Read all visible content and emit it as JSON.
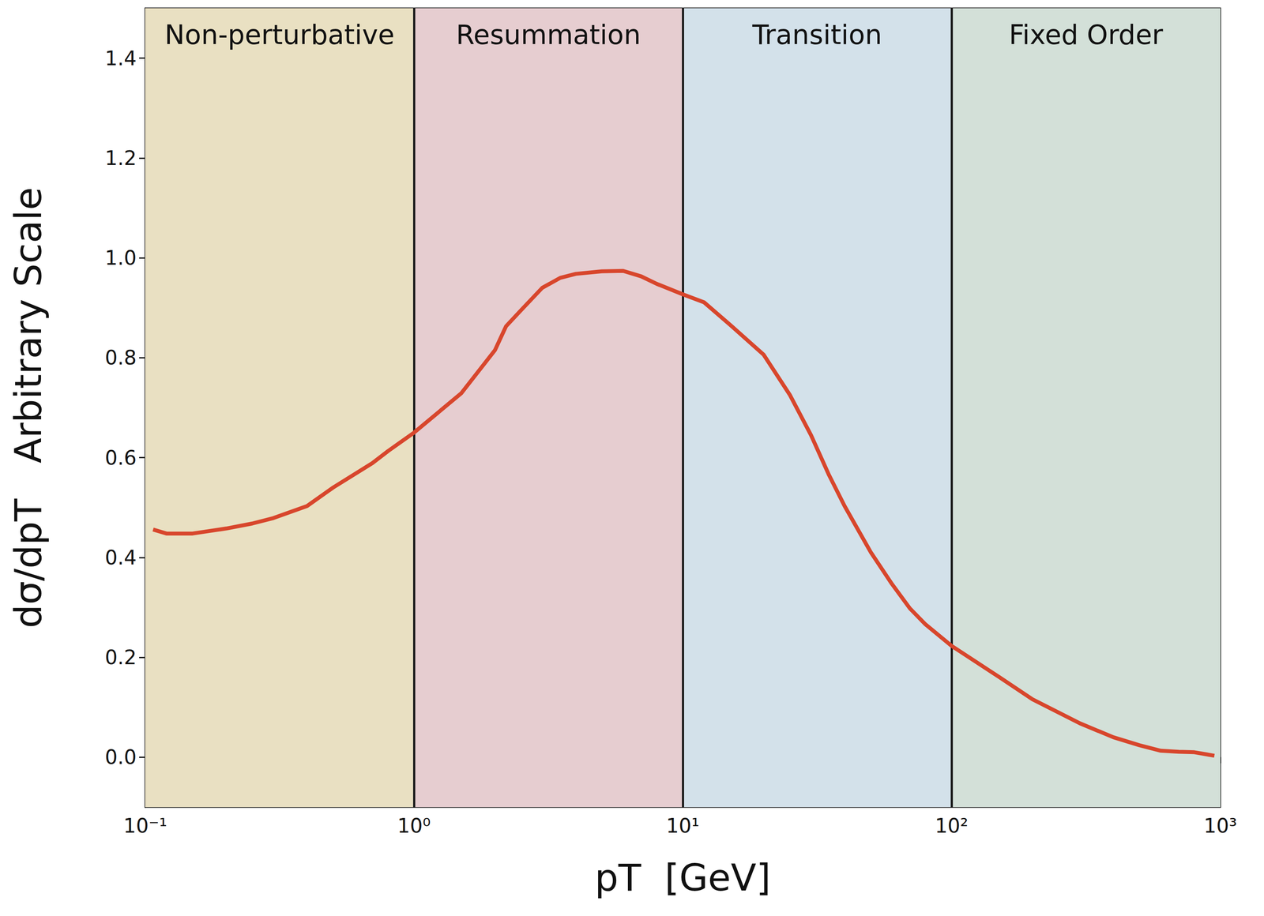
{
  "chart_data": {
    "type": "line",
    "xlabel": "pT  [GeV]",
    "ylabel": "dσ/dpT   Arbitrary Scale",
    "log": "x",
    "grid": false,
    "color": "#d8462c",
    "xlim": [
      0.1,
      1000
    ],
    "ylim": [
      -0.1,
      1.5
    ],
    "xticks": [
      {
        "value": 0.1,
        "label": "10⁻¹"
      },
      {
        "value": 1,
        "label": "10⁰"
      },
      {
        "value": 10,
        "label": "10¹"
      },
      {
        "value": 100,
        "label": "10²"
      },
      {
        "value": 1000,
        "label": "10³"
      }
    ],
    "yticks": [
      {
        "value": 0,
        "label": "0.0"
      },
      0.2,
      0.4,
      0.6,
      0.8,
      {
        "value": 1,
        "label": "1.0"
      },
      1.2,
      1.4
    ],
    "regions": [
      {
        "label": "Non-perturbative",
        "start": 0.1,
        "end": 1,
        "color": "#e9e0c2"
      },
      {
        "label": "Resummation",
        "start": 1,
        "end": 10,
        "color": "#e6cdd0"
      },
      {
        "label": "Transition",
        "start": 10,
        "end": 100,
        "color": "#d3e1ea"
      },
      {
        "label": "Fixed Order",
        "start": 100,
        "end": 1000,
        "color": "#d3e0d8"
      }
    ],
    "x": [
      0.107,
      0.12,
      0.15,
      0.2,
      0.25,
      0.3,
      0.4,
      0.5,
      0.7,
      0.8,
      1,
      1.5,
      2,
      2.2,
      2.5,
      3,
      3.5,
      4,
      5,
      6,
      7,
      8,
      10,
      12,
      15,
      20,
      25,
      30,
      35,
      40,
      50,
      60,
      70,
      80,
      100,
      150,
      200,
      300,
      400,
      500,
      600,
      700,
      800,
      950
    ],
    "values": [
      0.456,
      0.448,
      0.448,
      0.458,
      0.468,
      0.479,
      0.503,
      0.54,
      0.589,
      0.613,
      0.65,
      0.729,
      0.815,
      0.863,
      0.895,
      0.94,
      0.96,
      0.968,
      0.973,
      0.974,
      0.963,
      0.948,
      0.927,
      0.911,
      0.866,
      0.806,
      0.726,
      0.645,
      0.565,
      0.503,
      0.411,
      0.347,
      0.298,
      0.266,
      0.223,
      0.161,
      0.116,
      0.068,
      0.04,
      0.024,
      0.013,
      0.011,
      0.01,
      0.003
    ]
  }
}
